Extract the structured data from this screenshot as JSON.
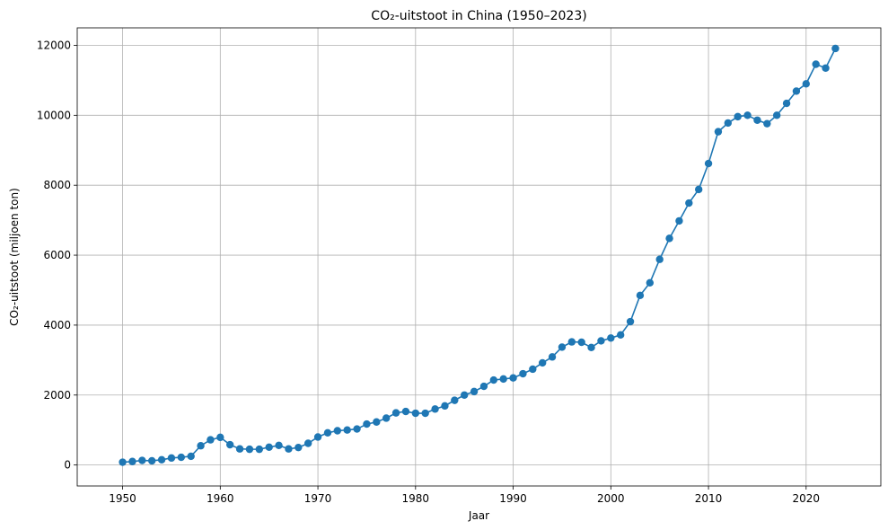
{
  "chart_data": {
    "type": "line",
    "title": "CO₂-uitstoot in China (1950–2023)",
    "xlabel": "Jaar",
    "ylabel": "CO₂-uitstoot (miljoen ton)",
    "xlim": [
      1945.35,
      2027.65
    ],
    "ylim": [
      -600,
      12500
    ],
    "xticks": [
      1950,
      1960,
      1970,
      1980,
      1990,
      2000,
      2010,
      2020
    ],
    "yticks": [
      0,
      2000,
      4000,
      6000,
      8000,
      10000,
      12000
    ],
    "grid": true,
    "marker": "circle",
    "color": "#1f77b4",
    "series": [
      {
        "x": [
          1950,
          1951,
          1952,
          1953,
          1954,
          1955,
          1956,
          1957,
          1958,
          1959,
          1960,
          1961,
          1962,
          1963,
          1964,
          1965,
          1966,
          1967,
          1968,
          1969,
          1970,
          1971,
          1972,
          1973,
          1974,
          1975,
          1976,
          1977,
          1978,
          1979,
          1980,
          1981,
          1982,
          1983,
          1984,
          1985,
          1986,
          1987,
          1988,
          1989,
          1990,
          1991,
          1992,
          1993,
          1994,
          1995,
          1996,
          1997,
          1998,
          1999,
          2000,
          2001,
          2002,
          2003,
          2004,
          2005,
          2006,
          2007,
          2008,
          2009,
          2010,
          2011,
          2012,
          2013,
          2014,
          2015,
          2016,
          2017,
          2018,
          2019,
          2020,
          2021,
          2022,
          2023
        ],
        "values": [
          80,
          100,
          130,
          120,
          150,
          200,
          220,
          250,
          550,
          720,
          790,
          580,
          460,
          450,
          450,
          510,
          560,
          460,
          500,
          620,
          800,
          920,
          980,
          1000,
          1030,
          1170,
          1230,
          1340,
          1490,
          1530,
          1480,
          1480,
          1600,
          1690,
          1850,
          2000,
          2100,
          2250,
          2430,
          2460,
          2490,
          2610,
          2740,
          2920,
          3090,
          3370,
          3520,
          3510,
          3360,
          3550,
          3630,
          3720,
          4100,
          4850,
          5210,
          5880,
          6480,
          6980,
          7490,
          7880,
          8620,
          9530,
          9780,
          9960,
          10000,
          9860,
          9760,
          10000,
          10340,
          10690,
          10900,
          11460,
          11350,
          11910
        ]
      }
    ]
  }
}
